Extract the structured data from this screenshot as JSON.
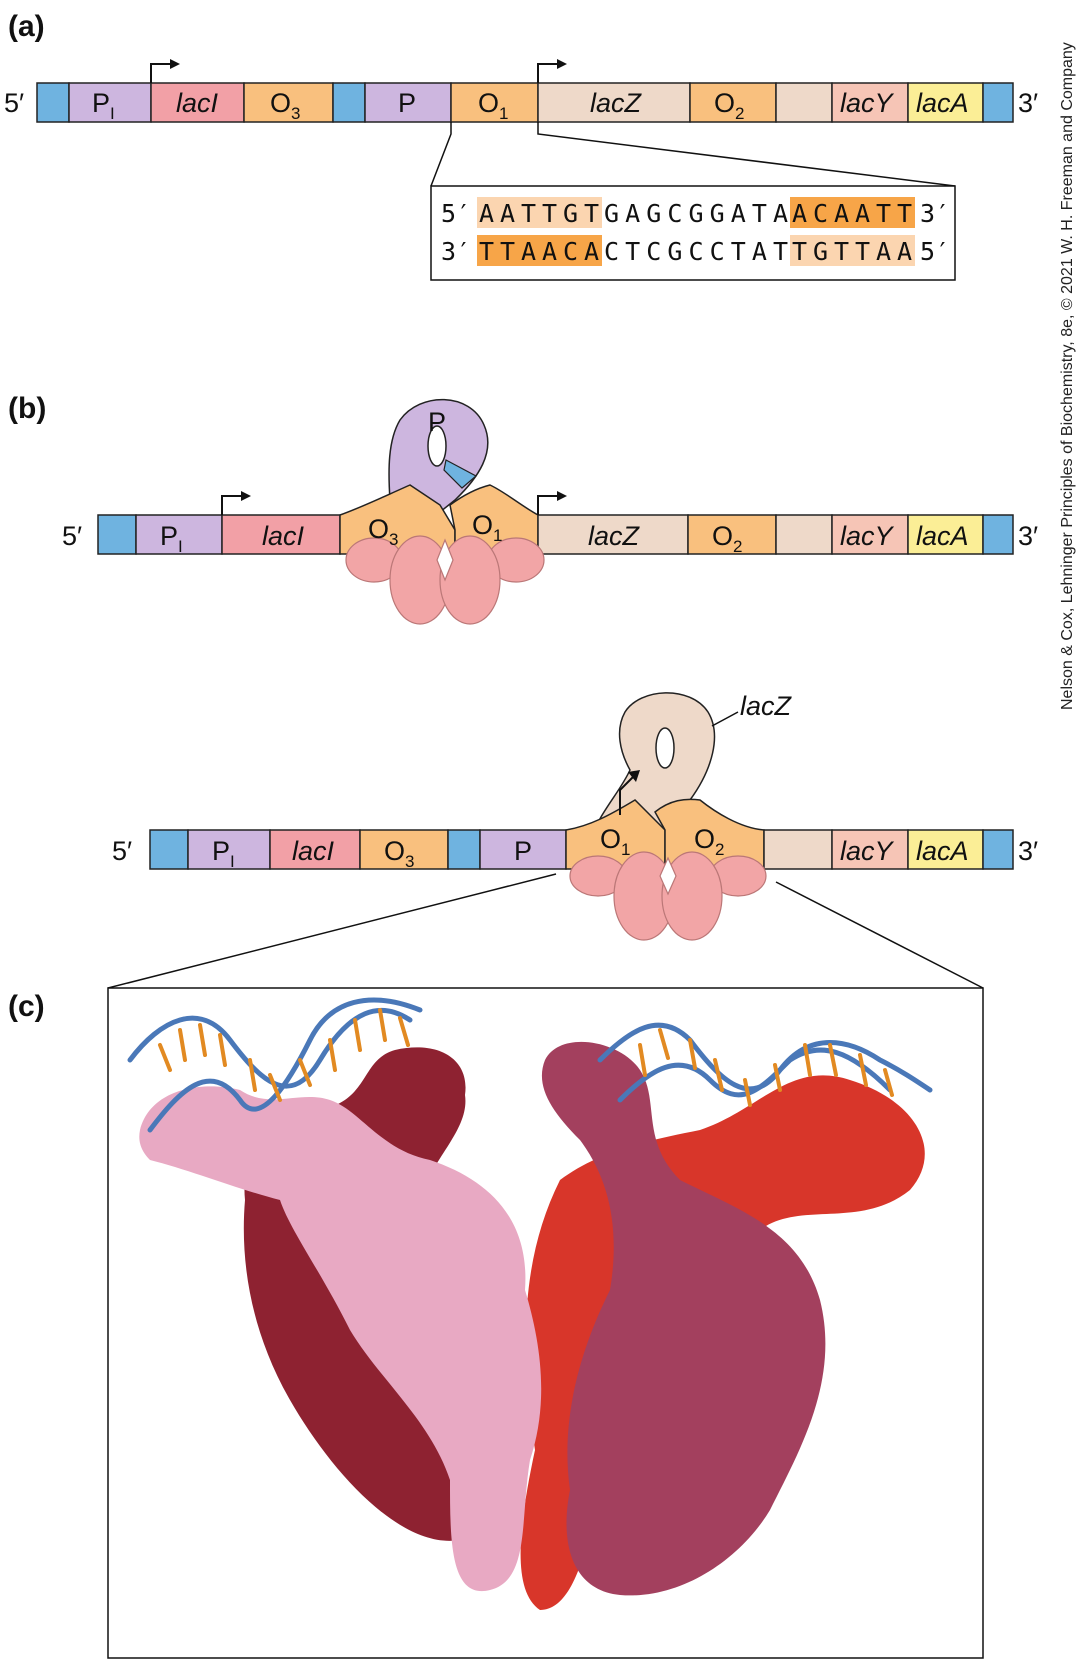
{
  "panel_a": {
    "label": "(a)",
    "end_5": "5′",
    "end_3": "3′",
    "segments": {
      "pi": "P",
      "pi_sub": "I",
      "laci": "lacI",
      "o3": "O",
      "o3_sub": "3",
      "p": "P",
      "o1": "O",
      "o1_sub": "1",
      "lacz": "lacZ",
      "o2": "O",
      "o2_sub": "2",
      "lacy": "lacY",
      "laca": "lacA"
    },
    "sequence": {
      "top_5": "5′",
      "top_3": "3′",
      "top_left": "AATTGT",
      "top_mid": "GAGCGGATA",
      "top_right": "ACAATT",
      "bot_3": "3′",
      "bot_5": "5′",
      "bot_left": "TTAACA",
      "bot_mid": "CTCGCCTAT",
      "bot_right": "TGTTAA"
    }
  },
  "panel_b": {
    "label": "(b)",
    "top": {
      "end_5": "5′",
      "end_3": "3′",
      "pi": "P",
      "pi_sub": "I",
      "laci": "lacI",
      "o3": "O",
      "o3_sub": "3",
      "o1": "O",
      "o1_sub": "1",
      "loop_label": "P",
      "lacz": "lacZ",
      "o2": "O",
      "o2_sub": "2",
      "lacy": "lacY",
      "laca": "lacA"
    },
    "bottom": {
      "end_5": "5′",
      "end_3": "3′",
      "pi": "P",
      "pi_sub": "I",
      "laci": "lacI",
      "o3": "O",
      "o3_sub": "3",
      "p": "P",
      "o1": "O",
      "o1_sub": "1",
      "o2": "O",
      "o2_sub": "2",
      "loop_label": "lacZ",
      "lacy": "lacY",
      "laca": "lacA"
    }
  },
  "panel_c": {
    "label": "(c)"
  },
  "credit": "Nelson & Cox, Lehninger Principles of Biochemistry, 8e, © 2021 W. H. Freeman and Company",
  "colors": {
    "blue": "#6fb3e0",
    "purple": "#cdb6df",
    "red": "#f2a0a6",
    "orange": "#f9c07e",
    "tan": "#eed9c9",
    "salmon": "#f6c5b6",
    "yellow": "#fbee96",
    "seq_light": "#fbd5b0",
    "seq_dark": "#f7a548",
    "repressor": "#f2a5a6",
    "dna_strand": "#4a78b8",
    "bases": "#e28a22",
    "prot_pink": "#e8a9c3",
    "prot_dark": "#8e2231",
    "prot_red": "#d8362a",
    "prot_mauve": "#a3405e"
  }
}
